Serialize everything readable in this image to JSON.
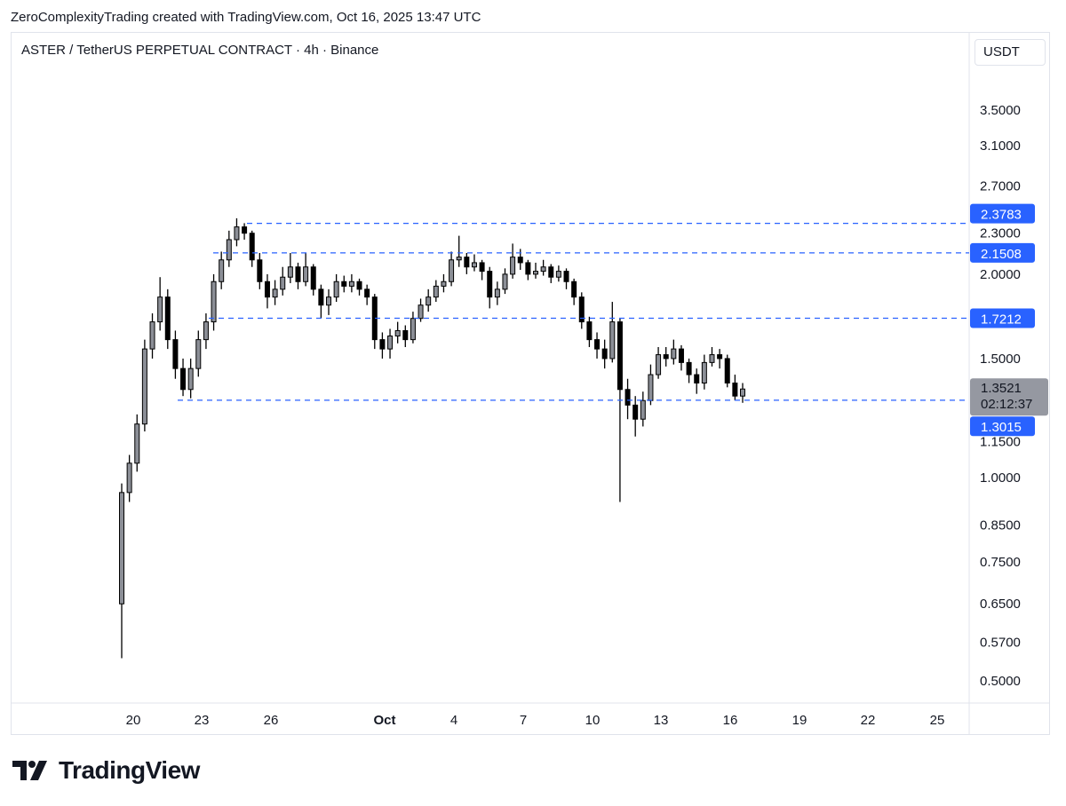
{
  "credit": "ZeroComplexityTrading created with TradingView.com, Oct 16, 2025 13:47 UTC",
  "header": {
    "title": "ASTER / TetherUS PERPETUAL CONTRACT · 4h · Binance",
    "currency_button": "USDT"
  },
  "logo": {
    "text": "TradingView"
  },
  "chart_data": {
    "type": "candlestick",
    "title": "ASTER / TetherUS PERPETUAL CONTRACT · 4h · Binance",
    "scale": "log",
    "ylim": [
      0.48,
      3.9
    ],
    "grid": false,
    "colors": {
      "up": "#8c8f97",
      "down": "#000000",
      "wick": "#000000",
      "level_line": "#2962ff",
      "level_label": "#2962ff",
      "last_price_label": "#9598a1"
    },
    "y_ticks": [
      "3.5000",
      "3.1000",
      "2.7000",
      "2.3000",
      "2.0000",
      "1.5000",
      "1.1500",
      "1.0000",
      "0.8500",
      "0.7500",
      "0.6500",
      "0.5700",
      "0.5000"
    ],
    "x_ticks": [
      "20",
      "23",
      "26",
      "Oct",
      "4",
      "7",
      "10",
      "13",
      "16",
      "19",
      "22",
      "25"
    ],
    "levels": [
      "2.3783",
      "2.1508",
      "1.7212",
      "1.3015"
    ],
    "last_price": "1.3521",
    "countdown": "02:12:37",
    "candles_ohlc": [
      [
        0.65,
        0.98,
        0.54,
        0.95
      ],
      [
        0.95,
        1.08,
        0.92,
        1.05
      ],
      [
        1.05,
        1.24,
        1.02,
        1.2
      ],
      [
        1.2,
        1.6,
        1.17,
        1.55
      ],
      [
        1.55,
        1.75,
        1.5,
        1.7
      ],
      [
        1.7,
        1.98,
        1.65,
        1.85
      ],
      [
        1.85,
        1.9,
        1.55,
        1.6
      ],
      [
        1.6,
        1.65,
        1.4,
        1.45
      ],
      [
        1.45,
        1.5,
        1.32,
        1.35
      ],
      [
        1.35,
        1.5,
        1.31,
        1.45
      ],
      [
        1.45,
        1.65,
        1.41,
        1.6
      ],
      [
        1.6,
        1.75,
        1.55,
        1.7
      ],
      [
        1.7,
        2.0,
        1.65,
        1.95
      ],
      [
        1.95,
        2.16,
        1.9,
        2.1
      ],
      [
        2.1,
        2.32,
        2.05,
        2.25
      ],
      [
        2.25,
        2.42,
        2.2,
        2.35
      ],
      [
        2.35,
        2.38,
        2.25,
        2.3
      ],
      [
        2.3,
        2.32,
        2.05,
        2.1
      ],
      [
        2.1,
        2.15,
        1.9,
        1.95
      ],
      [
        1.95,
        2.0,
        1.78,
        1.85
      ],
      [
        1.85,
        1.96,
        1.8,
        1.9
      ],
      [
        1.9,
        2.05,
        1.86,
        1.98
      ],
      [
        1.98,
        2.15,
        1.94,
        2.05
      ],
      [
        2.05,
        2.08,
        1.9,
        1.95
      ],
      [
        1.95,
        2.15,
        1.92,
        2.05
      ],
      [
        2.05,
        2.07,
        1.86,
        1.9
      ],
      [
        1.9,
        1.93,
        1.72,
        1.8
      ],
      [
        1.8,
        1.9,
        1.74,
        1.85
      ],
      [
        1.85,
        2.0,
        1.82,
        1.95
      ],
      [
        1.95,
        1.99,
        1.88,
        1.92
      ],
      [
        1.92,
        2.0,
        1.88,
        1.95
      ],
      [
        1.95,
        1.97,
        1.86,
        1.9
      ],
      [
        1.9,
        1.93,
        1.8,
        1.85
      ],
      [
        1.85,
        1.87,
        1.55,
        1.6
      ],
      [
        1.6,
        1.64,
        1.5,
        1.55
      ],
      [
        1.55,
        1.66,
        1.5,
        1.62
      ],
      [
        1.62,
        1.7,
        1.58,
        1.65
      ],
      [
        1.65,
        1.68,
        1.56,
        1.6
      ],
      [
        1.6,
        1.76,
        1.58,
        1.72
      ],
      [
        1.72,
        1.84,
        1.7,
        1.8
      ],
      [
        1.8,
        1.9,
        1.76,
        1.85
      ],
      [
        1.85,
        1.96,
        1.82,
        1.92
      ],
      [
        1.92,
        2.0,
        1.88,
        1.95
      ],
      [
        1.95,
        2.16,
        1.92,
        2.1
      ],
      [
        2.1,
        2.28,
        2.05,
        2.12
      ],
      [
        2.12,
        2.15,
        2.0,
        2.05
      ],
      [
        2.05,
        2.14,
        2.02,
        2.08
      ],
      [
        2.08,
        2.1,
        1.96,
        2.02
      ],
      [
        2.02,
        2.05,
        1.78,
        1.85
      ],
      [
        1.85,
        1.95,
        1.8,
        1.9
      ],
      [
        1.9,
        2.04,
        1.87,
        2.0
      ],
      [
        2.0,
        2.22,
        1.97,
        2.12
      ],
      [
        2.12,
        2.18,
        2.03,
        2.08
      ],
      [
        2.08,
        2.1,
        1.96,
        2.0
      ],
      [
        2.0,
        2.08,
        1.97,
        2.02
      ],
      [
        2.02,
        2.1,
        1.99,
        2.05
      ],
      [
        2.05,
        2.07,
        1.94,
        1.98
      ],
      [
        1.98,
        2.06,
        1.95,
        2.02
      ],
      [
        2.02,
        2.04,
        1.9,
        1.95
      ],
      [
        1.95,
        1.97,
        1.8,
        1.85
      ],
      [
        1.85,
        1.88,
        1.66,
        1.7
      ],
      [
        1.7,
        1.73,
        1.56,
        1.6
      ],
      [
        1.6,
        1.64,
        1.5,
        1.55
      ],
      [
        1.55,
        1.6,
        1.45,
        1.5
      ],
      [
        1.5,
        1.82,
        1.48,
        1.7
      ],
      [
        1.7,
        1.72,
        0.92,
        1.35
      ],
      [
        1.35,
        1.4,
        1.22,
        1.28
      ],
      [
        1.28,
        1.32,
        1.15,
        1.22
      ],
      [
        1.22,
        1.34,
        1.19,
        1.3
      ],
      [
        1.3,
        1.47,
        1.28,
        1.42
      ],
      [
        1.42,
        1.56,
        1.4,
        1.52
      ],
      [
        1.52,
        1.56,
        1.46,
        1.5
      ],
      [
        1.5,
        1.6,
        1.47,
        1.55
      ],
      [
        1.55,
        1.57,
        1.44,
        1.48
      ],
      [
        1.48,
        1.5,
        1.38,
        1.42
      ],
      [
        1.42,
        1.45,
        1.33,
        1.38
      ],
      [
        1.38,
        1.52,
        1.35,
        1.48
      ],
      [
        1.48,
        1.56,
        1.46,
        1.52
      ],
      [
        1.52,
        1.55,
        1.45,
        1.5
      ],
      [
        1.5,
        1.52,
        1.36,
        1.38
      ],
      [
        1.38,
        1.42,
        1.3,
        1.32
      ],
      [
        1.32,
        1.38,
        1.29,
        1.3521
      ]
    ]
  }
}
